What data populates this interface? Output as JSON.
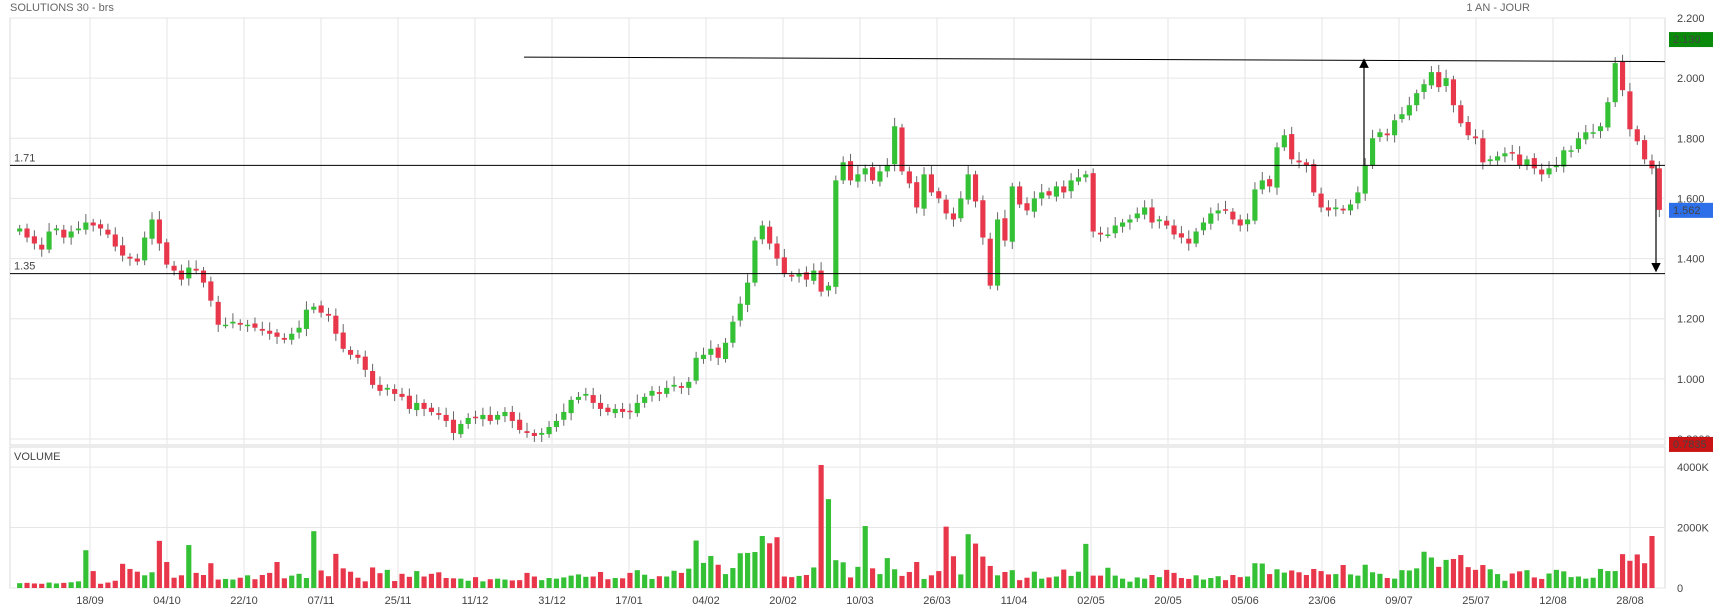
{
  "header": {
    "left": "SOLUTIONS 30 - brs",
    "right": "1 AN - JOUR"
  },
  "colors": {
    "up": "#35c135",
    "down": "#e8364a",
    "badge_green": "#0a8a0a",
    "badge_blue": "#2d6fe8",
    "badge_red": "#c81414",
    "volume_label": "#35c135"
  },
  "chart_data": [
    {
      "type": "candlestick",
      "title": "SOLUTIONS 30 - brs",
      "period": "1 AN - JOUR",
      "ylim": [
        0.78,
        2.2
      ],
      "y_ticks": [
        "2.200",
        "2.000",
        "1.800",
        "1.600",
        "1.400",
        "1.200",
        "1.000",
        "0.8000"
      ],
      "x_ticks": [
        "18/09",
        "04/10",
        "22/10",
        "07/11",
        "25/11",
        "11/12",
        "31/12",
        "17/01",
        "04/02",
        "20/02",
        "10/03",
        "26/03",
        "11/04",
        "02/05",
        "20/05",
        "05/06",
        "23/06",
        "09/07",
        "25/07",
        "12/08",
        "28/08"
      ],
      "horizontal_lines": [
        {
          "label": "1.71",
          "value": 1.71
        },
        {
          "label": "1.35",
          "value": 1.35
        }
      ],
      "resistance_line": {
        "from": {
          "date": "20/12",
          "value": 2.07
        },
        "to": {
          "date": "28/08",
          "value": 2.055
        }
      },
      "target_arrows": [
        {
          "date": "24/06",
          "from": 1.71,
          "to": 2.05
        },
        {
          "date": "29/08",
          "from": 1.71,
          "to": 1.37
        }
      ],
      "badges": {
        "high": "2.130",
        "last": "1.562",
        "low": "0.7835"
      },
      "closes": [
        1.5,
        1.47,
        1.45,
        1.43,
        1.49,
        1.5,
        1.47,
        1.49,
        1.5,
        1.52,
        1.51,
        1.5,
        1.48,
        1.44,
        1.41,
        1.4,
        1.39,
        1.47,
        1.53,
        1.45,
        1.38,
        1.36,
        1.33,
        1.37,
        1.36,
        1.32,
        1.26,
        1.18,
        1.18,
        1.19,
        1.18,
        1.18,
        1.17,
        1.16,
        1.15,
        1.14,
        1.13,
        1.15,
        1.17,
        1.23,
        1.24,
        1.22,
        1.21,
        1.15,
        1.1,
        1.08,
        1.07,
        1.03,
        0.98,
        0.96,
        0.97,
        0.95,
        0.94,
        0.9,
        0.92,
        0.9,
        0.89,
        0.88,
        0.86,
        0.82,
        0.85,
        0.87,
        0.87,
        0.88,
        0.86,
        0.88,
        0.89,
        0.86,
        0.83,
        0.82,
        0.81,
        0.82,
        0.84,
        0.86,
        0.89,
        0.93,
        0.94,
        0.95,
        0.92,
        0.9,
        0.89,
        0.9,
        0.89,
        0.89,
        0.92,
        0.94,
        0.96,
        0.95,
        0.97,
        0.98,
        0.97,
        0.99,
        1.07,
        1.08,
        1.1,
        1.07,
        1.12,
        1.19,
        1.25,
        1.32,
        1.46,
        1.51,
        1.45,
        1.4,
        1.35,
        1.34,
        1.35,
        1.33,
        1.36,
        1.29,
        1.31,
        1.66,
        1.72,
        1.66,
        1.68,
        1.7,
        1.66,
        1.69,
        1.71,
        1.84,
        1.69,
        1.65,
        1.57,
        1.68,
        1.62,
        1.6,
        1.55,
        1.53,
        1.6,
        1.68,
        1.59,
        1.47,
        1.31,
        1.53,
        1.46,
        1.64,
        1.58,
        1.56,
        1.6,
        1.62,
        1.61,
        1.64,
        1.62,
        1.66,
        1.67,
        1.68,
        1.49,
        1.48,
        1.48,
        1.51,
        1.52,
        1.53,
        1.55,
        1.57,
        1.52,
        1.53,
        1.51,
        1.48,
        1.47,
        1.45,
        1.49,
        1.52,
        1.55,
        1.56,
        1.56,
        1.53,
        1.51,
        1.53,
        1.63,
        1.66,
        1.64,
        1.77,
        1.81,
        1.73,
        1.72,
        1.71,
        1.62,
        1.57,
        1.56,
        1.57,
        1.56,
        1.58,
        1.62,
        1.71,
        1.8,
        1.82,
        1.81,
        1.86,
        1.88,
        1.91,
        1.95,
        1.98,
        2.02,
        1.97,
        2.0,
        1.91,
        1.85,
        1.81,
        1.8,
        1.72,
        1.73,
        1.74,
        1.75,
        1.75,
        1.71,
        1.73,
        1.7,
        1.68,
        1.7,
        1.71,
        1.76,
        1.76,
        1.8,
        1.82,
        1.82,
        1.84,
        1.92,
        2.05,
        1.96,
        1.83,
        1.79,
        1.73,
        1.7,
        1.562
      ],
      "volumes": [
        160,
        170,
        150,
        140,
        180,
        150,
        170,
        190,
        220,
        1250,
        560,
        140,
        180,
        240,
        800,
        630,
        540,
        420,
        520,
        1560,
        860,
        340,
        420,
        1420,
        500,
        430,
        820,
        280,
        300,
        280,
        340,
        420,
        290,
        430,
        500,
        860,
        320,
        410,
        470,
        330,
        1880,
        580,
        390,
        1130,
        650,
        540,
        340,
        220,
        680,
        490,
        600,
        230,
        470,
        370,
        560,
        380,
        470,
        520,
        330,
        320,
        310,
        240,
        360,
        220,
        290,
        310,
        280,
        250,
        260,
        500,
        380,
        260,
        330,
        310,
        350,
        410,
        450,
        370,
        380,
        530,
        290,
        330,
        320,
        500,
        590,
        440,
        300,
        390,
        380,
        570,
        500,
        640,
        1570,
        830,
        1060,
        770,
        460,
        660,
        1150,
        1160,
        1190,
        1720,
        1480,
        1680,
        380,
        360,
        400,
        430,
        680,
        4070,
        2940,
        920,
        850,
        350,
        700,
        2050,
        650,
        460,
        990,
        620,
        400,
        530,
        860,
        300,
        420,
        560,
        2030,
        1050,
        450,
        1780,
        1470,
        1040,
        730,
        420,
        530,
        590,
        260,
        340,
        540,
        310,
        350,
        380,
        610,
        400,
        540,
        1460,
        410,
        410,
        670,
        410,
        310,
        210,
        350,
        310,
        430,
        360,
        600,
        500,
        330,
        300,
        420,
        280,
        330,
        390,
        260,
        430,
        360,
        380,
        820,
        810,
        460,
        620,
        510,
        580,
        520,
        430,
        630,
        560,
        450,
        460,
        760,
        450,
        410,
        770,
        520,
        470,
        330,
        310,
        590,
        580,
        650,
        1200,
        1010,
        700,
        930,
        960,
        1090,
        690,
        600,
        760,
        620,
        460,
        240,
        480,
        550,
        590,
        350,
        300,
        480,
        600,
        550,
        360,
        380,
        310,
        340,
        630,
        560,
        560,
        1120,
        900,
        1110,
        820,
        1720
      ]
    }
  ],
  "volume_panel": {
    "label": "VOLUME",
    "y_ticks": [
      "4000K",
      "2000K",
      "0"
    ]
  }
}
